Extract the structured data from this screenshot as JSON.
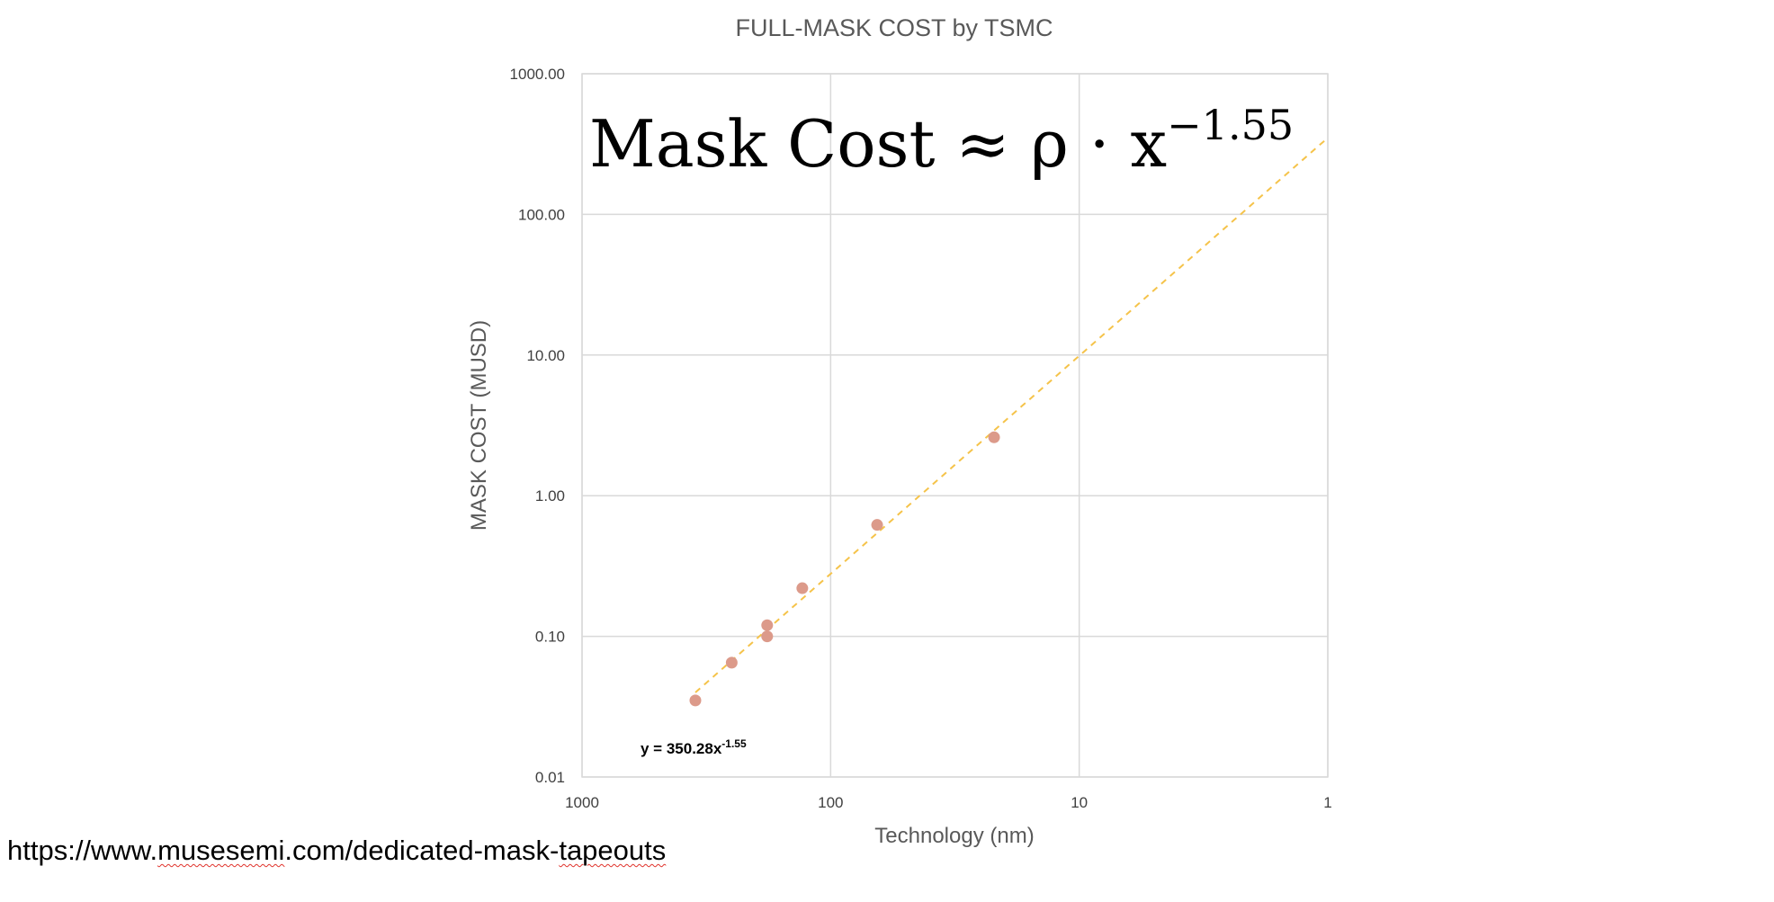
{
  "chart_data": {
    "type": "scatter",
    "title": "FULL-MASK COST by TSMC",
    "xlabel": "Technology (nm)",
    "ylabel": "MASK COST (MUSD)",
    "x_scale": "log",
    "x_reversed": true,
    "y_scale": "log",
    "xlim": [
      1000,
      1
    ],
    "ylim": [
      0.01,
      1000
    ],
    "x_ticks": [
      "1000",
      "100",
      "10",
      "1"
    ],
    "y_ticks": [
      "1000.00",
      "100.00",
      "10.00",
      "1.00",
      "0.10",
      "0.01"
    ],
    "grid": true,
    "legend": "none",
    "marker_color": "#dc9a8a",
    "trendline_color": "#f5c34a",
    "points": [
      {
        "x": 350,
        "y": 0.035
      },
      {
        "x": 250,
        "y": 0.065
      },
      {
        "x": 180,
        "y": 0.1
      },
      {
        "x": 180,
        "y": 0.12
      },
      {
        "x": 130,
        "y": 0.22
      },
      {
        "x": 65,
        "y": 0.62
      },
      {
        "x": 22,
        "y": 2.6
      }
    ],
    "trendline": {
      "type": "power",
      "coefficient": 350.28,
      "exponent": -1.55,
      "x_range": [
        350,
        1
      ],
      "label_base": "y = 350.28x",
      "label_exponent": "-1.55"
    }
  },
  "annotation": {
    "formula_base": "Mask Cost ≈ ρ · x",
    "formula_exponent": "−1.55"
  },
  "source": {
    "url_parts": [
      "https://www.",
      "musesemi",
      ".com/dedicated-mask-",
      "tapeouts"
    ]
  }
}
